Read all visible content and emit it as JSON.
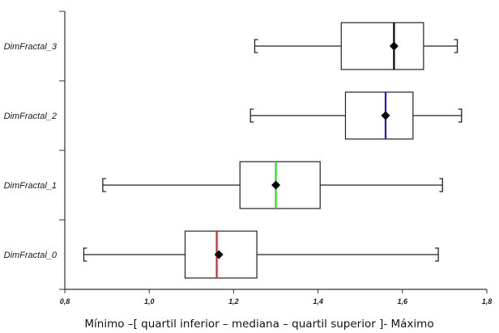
{
  "chart_data": {
    "type": "boxplot",
    "orientation": "horizontal",
    "xlabel": "Mínimo –[ quartil inferior – mediana – quartil superior ]- Máximo",
    "xlim": [
      0.8,
      1.8
    ],
    "xticks": [
      "0,8",
      "1,0",
      "1,2",
      "1,4",
      "1,6",
      "1,8"
    ],
    "grid": false,
    "series": [
      {
        "name": "DimFractal_3",
        "min": 1.25,
        "q1": 1.455,
        "median": 1.58,
        "mean": 1.58,
        "q3": 1.65,
        "max": 1.73,
        "median_color": "#000000"
      },
      {
        "name": "DimFractal_2",
        "min": 1.24,
        "q1": 1.465,
        "median": 1.56,
        "mean": 1.56,
        "q3": 1.625,
        "max": 1.74,
        "median_color": "#1f1fd0"
      },
      {
        "name": "DimFractal_1",
        "min": 0.89,
        "q1": 1.215,
        "median": 1.3,
        "mean": 1.3,
        "q3": 1.405,
        "max": 1.695,
        "median_color": "#22dd22"
      },
      {
        "name": "DimFractal_0",
        "min": 0.845,
        "q1": 1.085,
        "median": 1.16,
        "mean": 1.165,
        "q3": 1.255,
        "max": 1.685,
        "median_color": "#dd2222"
      }
    ]
  }
}
